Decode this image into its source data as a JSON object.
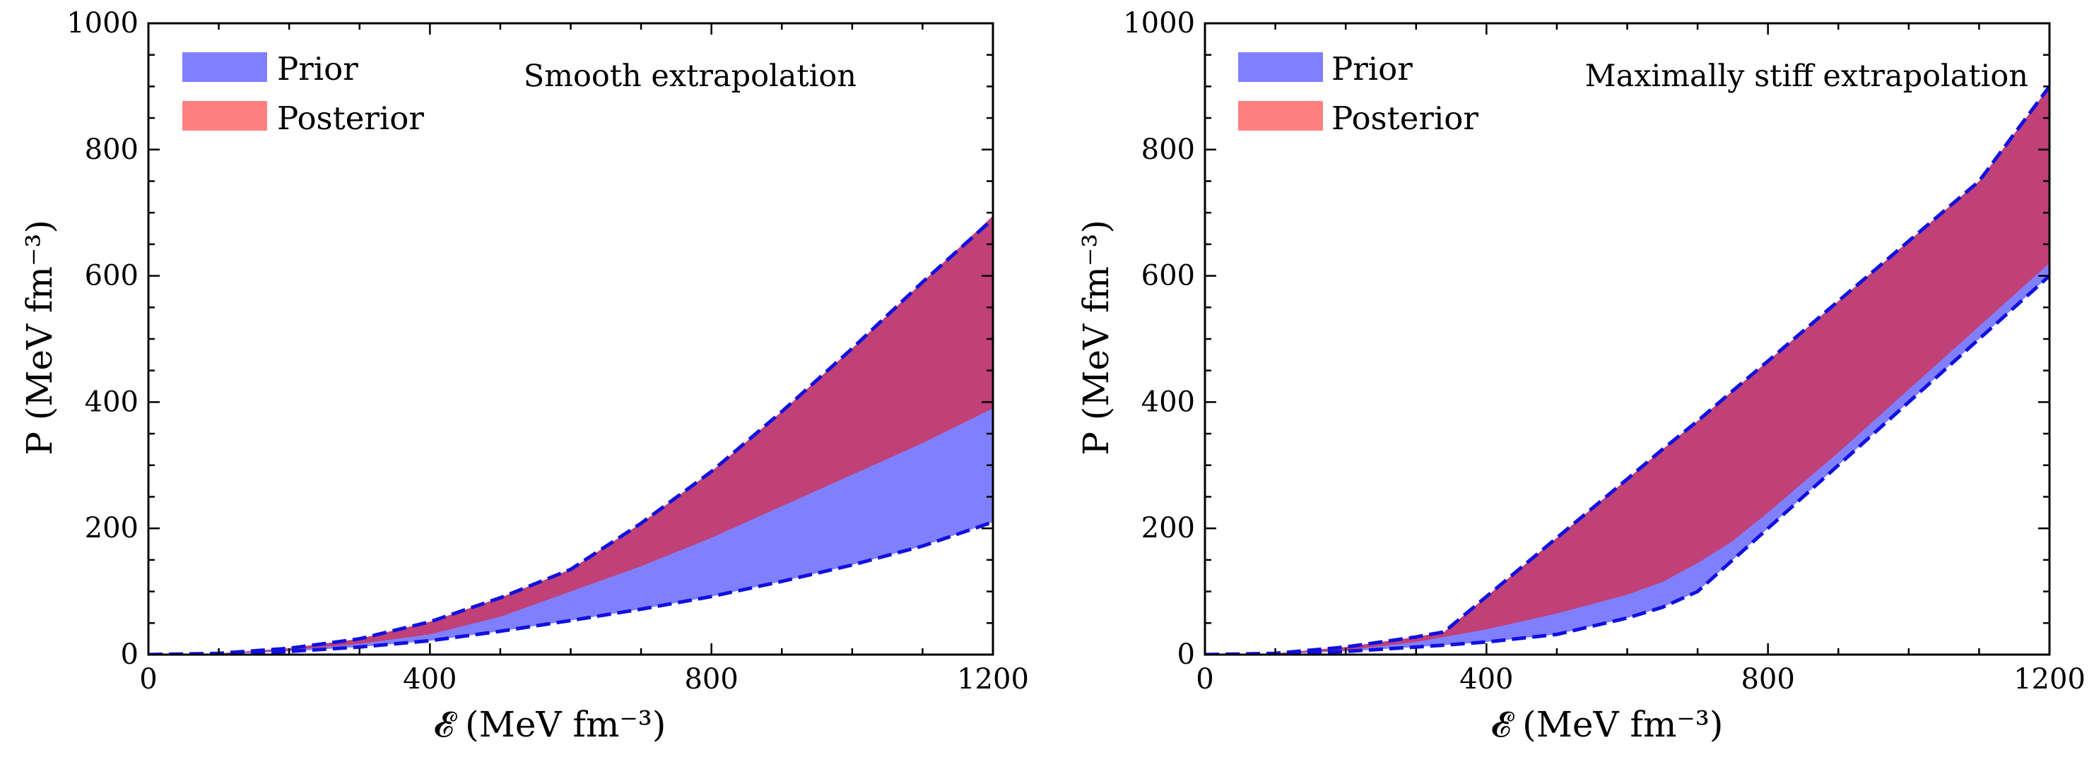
{
  "chart_data": [
    {
      "type": "area",
      "id": "left",
      "annotation": "Smooth extrapolation",
      "xlabel": "𝓔 (MeV fm⁻³)",
      "ylabel": "P (MeV fm⁻³)",
      "xlim": [
        0,
        1200
      ],
      "ylim": [
        0,
        1000
      ],
      "xticks": [
        0,
        400,
        800,
        1200
      ],
      "yticks": [
        0,
        200,
        400,
        600,
        800,
        1000
      ],
      "legend": [
        "Prior",
        "Posterior"
      ],
      "legend_position": "top-left",
      "x": [
        0,
        100,
        200,
        300,
        400,
        500,
        600,
        700,
        800,
        900,
        1000,
        1100,
        1200
      ],
      "series": [
        {
          "name": "Prior",
          "color": "#8080ff",
          "lower": [
            0,
            1,
            5,
            12,
            22,
            37,
            54,
            72,
            92,
            116,
            142,
            172,
            210
          ],
          "upper": [
            0,
            2,
            10,
            25,
            52,
            90,
            135,
            208,
            290,
            385,
            485,
            590,
            690
          ]
        },
        {
          "name": "Posterior",
          "color": "#c04078",
          "lower": [
            0,
            1,
            7,
            17,
            32,
            60,
            100,
            140,
            185,
            235,
            285,
            335,
            390
          ],
          "upper": [
            0,
            2,
            10,
            25,
            52,
            90,
            135,
            208,
            290,
            385,
            485,
            590,
            695
          ]
        }
      ],
      "boundary_color": "#1010e0"
    },
    {
      "type": "area",
      "id": "right",
      "annotation": "Maximally stiff extrapolation",
      "xlabel": "𝓔 (MeV fm⁻³)",
      "ylabel": "P (MeV fm⁻³)",
      "xlim": [
        0,
        1200
      ],
      "ylim": [
        0,
        1000
      ],
      "xticks": [
        0,
        400,
        800,
        1200
      ],
      "yticks": [
        0,
        200,
        400,
        600,
        800,
        1000
      ],
      "legend": [
        "Prior",
        "Posterior"
      ],
      "legend_position": "top-left",
      "x": [
        0,
        100,
        200,
        300,
        340,
        400,
        500,
        600,
        650,
        700,
        750,
        800,
        900,
        1000,
        1100,
        1200
      ],
      "series": [
        {
          "name": "Prior",
          "color": "#8080ff",
          "lower": [
            0,
            1,
            5,
            12,
            15,
            20,
            32,
            58,
            75,
            100,
            150,
            200,
            300,
            400,
            500,
            600
          ],
          "upper": [
            0,
            2,
            12,
            28,
            36,
            92,
            185,
            278,
            325,
            370,
            418,
            465,
            560,
            655,
            750,
            900
          ]
        },
        {
          "name": "Posterior",
          "color": "#c04078",
          "lower": [
            0,
            1,
            7,
            20,
            28,
            40,
            65,
            95,
            115,
            145,
            180,
            225,
            320,
            420,
            520,
            620
          ],
          "upper": [
            0,
            2,
            12,
            28,
            36,
            92,
            185,
            278,
            325,
            370,
            418,
            465,
            560,
            655,
            750,
            900
          ]
        }
      ],
      "boundary_color": "#1010e0"
    }
  ]
}
